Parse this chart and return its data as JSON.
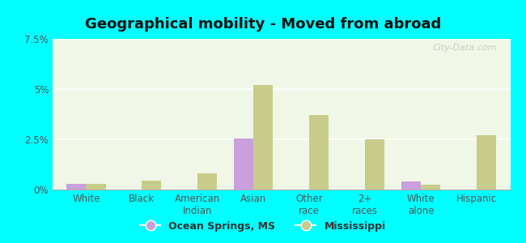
{
  "title": "Geographical mobility - Moved from abroad",
  "categories": [
    "White",
    "Black",
    "American\nIndian",
    "Asian",
    "Other\nrace",
    "2+\nraces",
    "White\nalone",
    "Hispanic"
  ],
  "ocean_springs": [
    0.3,
    0.0,
    0.0,
    2.55,
    0.0,
    0.0,
    0.4,
    0.0
  ],
  "mississippi": [
    0.3,
    0.45,
    0.8,
    5.2,
    3.7,
    2.5,
    0.25,
    2.7
  ],
  "color_os": "#c9a0dc",
  "color_ms": "#c8cc8a",
  "bar_width": 0.35,
  "ylim": [
    0,
    7.5
  ],
  "yticks": [
    0,
    2.5,
    5.0,
    7.5
  ],
  "ytick_labels": [
    "0%",
    "2.5%",
    "5%",
    "7.5%"
  ],
  "background_color": "#f0f7e6",
  "outer_background": "#00ffff",
  "legend_os": "Ocean Springs, MS",
  "legend_ms": "Mississippi",
  "watermark": "City-Data.com"
}
